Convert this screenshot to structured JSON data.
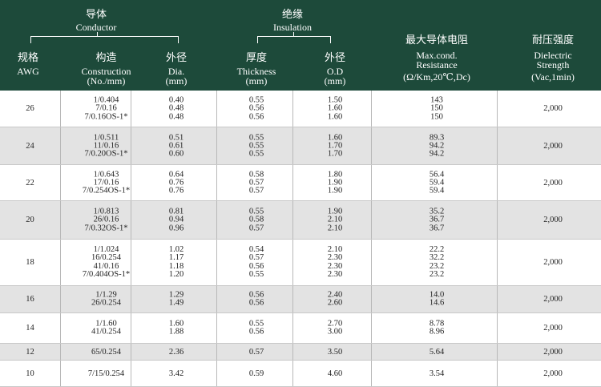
{
  "header": {
    "conductor_cn": "导体",
    "conductor_en": "Conductor",
    "insulation_cn": "绝缘",
    "insulation_en": "Insulation",
    "awg_cn": "规格",
    "awg_en": "AWG",
    "construction_cn": "构造",
    "construction_en": "Construction",
    "construction_unit": "(No./mm)",
    "dia_cn": "外径",
    "dia_en": "Dia.",
    "dia_unit": "(mm)",
    "thickness_cn": "厚度",
    "thickness_en": "Thickness",
    "thickness_unit": "(mm)",
    "od_cn": "外径",
    "od_en": "O.D",
    "od_unit": "(mm)",
    "resistance_cn": "最大导体电阻",
    "resistance_en1": "Max.cond.",
    "resistance_en2": "Resistance",
    "resistance_unit": "(Ω/Km,20℃,Dc)",
    "dielectric_cn": "耐压强度",
    "dielectric_en1": "Dielectric",
    "dielectric_en2": "Strength",
    "dielectric_unit": "(Vac,1min)"
  },
  "rows": [
    {
      "awg": "26",
      "construction": [
        "1/0.404",
        "7/0.16",
        "7/0.16OS-1*"
      ],
      "dia": [
        "0.40",
        "0.48",
        "0.48"
      ],
      "thickness": [
        "0.55",
        "0.56",
        "0.56"
      ],
      "od": [
        "1.50",
        "1.60",
        "1.60"
      ],
      "resistance": [
        "143",
        "150",
        "150"
      ],
      "dielectric": "2,000"
    },
    {
      "awg": "24",
      "construction": [
        "1/0.511",
        "11/0.16",
        "7/0.20OS-1*"
      ],
      "dia": [
        "0.51",
        "0.61",
        "0.60"
      ],
      "thickness": [
        "0.55",
        "0.55",
        "0.55"
      ],
      "od": [
        "1.60",
        "1.70",
        "1.70"
      ],
      "resistance": [
        "89.3",
        "94.2",
        "94.2"
      ],
      "dielectric": "2,000"
    },
    {
      "awg": "22",
      "construction": [
        "1/0.643",
        "17/0.16",
        "7/0.254OS-1*"
      ],
      "dia": [
        "0.64",
        "0.76",
        "0.76"
      ],
      "thickness": [
        "0.58",
        "0.57",
        "0.57"
      ],
      "od": [
        "1.80",
        "1.90",
        "1.90"
      ],
      "resistance": [
        "56.4",
        "59.4",
        "59.4"
      ],
      "dielectric": "2,000"
    },
    {
      "awg": "20",
      "construction": [
        "1/0.813",
        "26/0.16",
        "7/0.32OS-1*"
      ],
      "dia": [
        "0.81",
        "0.94",
        "0.96"
      ],
      "thickness": [
        "0.55",
        "0.58",
        "0.57"
      ],
      "od": [
        "1.90",
        "2.10",
        "2.10"
      ],
      "resistance": [
        "35.2",
        "36.7",
        "36.7"
      ],
      "dielectric": "2,000"
    },
    {
      "awg": "18",
      "construction": [
        "1/1.024",
        "16/0.254",
        "41/0.16",
        "7/0.404OS-1*"
      ],
      "dia": [
        "1.02",
        "1.17",
        "1.18",
        "1.20"
      ],
      "thickness": [
        "0.54",
        "0.57",
        "0.56",
        "0.55"
      ],
      "od": [
        "2.10",
        "2.30",
        "2.30",
        "2.30"
      ],
      "resistance": [
        "22.2",
        "32.2",
        "23.2",
        "23.2"
      ],
      "dielectric": "2,000"
    },
    {
      "awg": "16",
      "construction": [
        "1/1.29",
        "26/0.254"
      ],
      "dia": [
        "1.29",
        "1.49"
      ],
      "thickness": [
        "0.56",
        "0.56"
      ],
      "od": [
        "2.40",
        "2.60"
      ],
      "resistance": [
        "14.0",
        "14.6"
      ],
      "dielectric": "2,000"
    },
    {
      "awg": "14",
      "construction": [
        "1/1.60",
        "41/0.254"
      ],
      "dia": [
        "1.60",
        "1.88"
      ],
      "thickness": [
        "0.55",
        "0.56"
      ],
      "od": [
        "2.70",
        "3.00"
      ],
      "resistance": [
        "8.78",
        "8.96"
      ],
      "dielectric": "2,000"
    },
    {
      "awg": "12",
      "construction": [
        "65/0.254"
      ],
      "dia": [
        "2.36"
      ],
      "thickness": [
        "0.57"
      ],
      "od": [
        "3.50"
      ],
      "resistance": [
        "5.64"
      ],
      "dielectric": "2,000"
    },
    {
      "awg": "10",
      "construction": [
        "7/15/0.254"
      ],
      "dia": [
        "3.42"
      ],
      "thickness": [
        "0.59"
      ],
      "od": [
        "4.60"
      ],
      "resistance": [
        "3.54"
      ],
      "dielectric": "2,000"
    }
  ]
}
